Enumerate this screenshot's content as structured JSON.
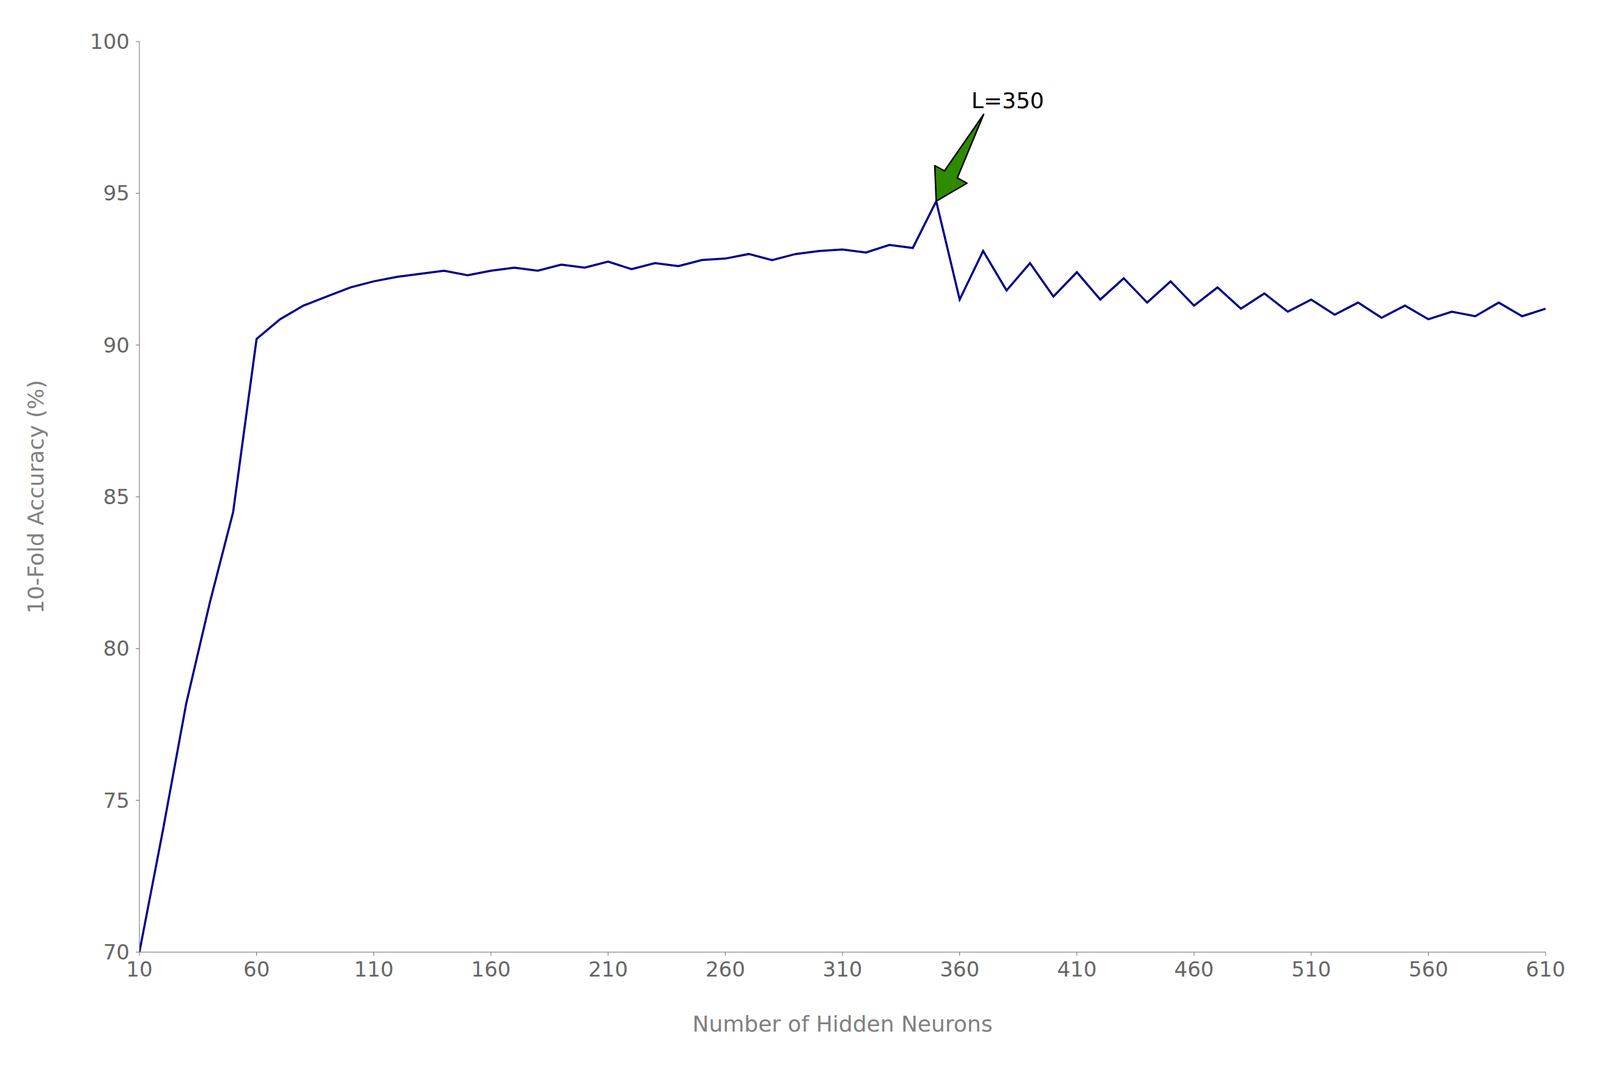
{
  "chart_data": {
    "type": "line",
    "x": [
      10,
      20,
      30,
      40,
      50,
      60,
      70,
      80,
      90,
      100,
      110,
      120,
      130,
      140,
      150,
      160,
      170,
      180,
      190,
      200,
      210,
      220,
      230,
      240,
      250,
      260,
      270,
      280,
      290,
      300,
      310,
      320,
      330,
      340,
      350,
      360,
      370,
      380,
      390,
      400,
      410,
      420,
      430,
      440,
      450,
      460,
      470,
      480,
      490,
      500,
      510,
      520,
      530,
      540,
      550,
      560,
      570,
      580,
      590,
      600,
      610
    ],
    "values": [
      70.0,
      74.0,
      78.2,
      81.5,
      84.5,
      90.2,
      90.85,
      91.3,
      91.6,
      91.9,
      92.1,
      92.25,
      92.35,
      92.45,
      92.3,
      92.45,
      92.55,
      92.45,
      92.65,
      92.55,
      92.75,
      92.5,
      92.7,
      92.6,
      92.8,
      92.85,
      93.0,
      92.8,
      93.0,
      93.1,
      93.15,
      93.05,
      93.3,
      93.2,
      94.74,
      91.5,
      93.1,
      91.8,
      92.7,
      91.6,
      92.4,
      91.5,
      92.2,
      91.4,
      92.1,
      91.3,
      91.9,
      91.2,
      91.7,
      91.1,
      91.5,
      91.0,
      91.4,
      90.9,
      91.3,
      90.85,
      91.1,
      90.95,
      91.4,
      90.95,
      91.2
    ],
    "color": "#00008B",
    "x_label": "Number of Hidden Neurons",
    "y_label": "10-Fold Accuracy (%)",
    "xlim": [
      10,
      610
    ],
    "ylim": [
      70,
      100
    ],
    "xticks": [
      10,
      60,
      110,
      160,
      210,
      260,
      310,
      360,
      410,
      460,
      510,
      560,
      610
    ],
    "yticks": [
      70,
      75,
      80,
      85,
      90,
      95,
      100
    ],
    "grid": false,
    "annotations": [
      {
        "text": "L=350",
        "x": 350,
        "y": 94.74,
        "text_x": 365,
        "text_y": 97.8,
        "color": "#2E8B00"
      }
    ]
  }
}
